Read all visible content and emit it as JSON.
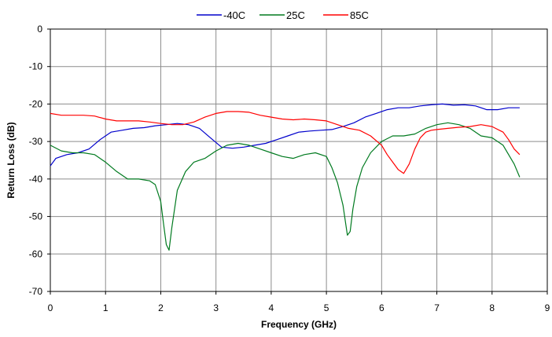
{
  "chart_data": {
    "type": "line",
    "xlabel": "Frequency (GHz)",
    "ylabel": "Return Loss (dB)",
    "xlim": [
      0,
      9
    ],
    "ylim": [
      -70,
      0
    ],
    "xticks": [
      0,
      1,
      2,
      3,
      4,
      5,
      6,
      7,
      8,
      9
    ],
    "yticks": [
      0,
      -10,
      -20,
      -30,
      -40,
      -50,
      -60,
      -70
    ],
    "grid": true,
    "legend_position": "top",
    "series": [
      {
        "name": "-40C",
        "color": "#0000cc",
        "x": [
          0,
          0.1,
          0.3,
          0.5,
          0.7,
          0.9,
          1.1,
          1.3,
          1.5,
          1.7,
          1.9,
          2.1,
          2.3,
          2.5,
          2.7,
          2.9,
          3.1,
          3.3,
          3.5,
          3.7,
          3.9,
          4.1,
          4.3,
          4.5,
          4.7,
          4.9,
          5.1,
          5.3,
          5.5,
          5.7,
          5.9,
          6.1,
          6.3,
          6.5,
          6.7,
          6.9,
          7.1,
          7.3,
          7.5,
          7.7,
          7.9,
          8.1,
          8.3,
          8.5
        ],
        "y": [
          -36.5,
          -34.5,
          -33.5,
          -33.0,
          -32.0,
          -29.5,
          -27.5,
          -27.0,
          -26.5,
          -26.3,
          -25.8,
          -25.5,
          -25.2,
          -25.5,
          -26.5,
          -29.0,
          -31.5,
          -31.8,
          -31.5,
          -31.0,
          -30.5,
          -29.5,
          -28.5,
          -27.5,
          -27.2,
          -27.0,
          -26.8,
          -26.0,
          -25.0,
          -23.5,
          -22.5,
          -21.5,
          -21.0,
          -21.0,
          -20.5,
          -20.2,
          -20.0,
          -20.3,
          -20.2,
          -20.5,
          -21.5,
          -21.5,
          -21.0,
          -21.0
        ]
      },
      {
        "name": "25C",
        "color": "#007a1f",
        "x": [
          0,
          0.2,
          0.4,
          0.6,
          0.8,
          1.0,
          1.2,
          1.4,
          1.6,
          1.8,
          1.9,
          2.0,
          2.05,
          2.1,
          2.15,
          2.2,
          2.3,
          2.45,
          2.6,
          2.8,
          3.0,
          3.2,
          3.4,
          3.6,
          3.8,
          4.0,
          4.2,
          4.4,
          4.6,
          4.8,
          5.0,
          5.1,
          5.2,
          5.3,
          5.38,
          5.43,
          5.48,
          5.55,
          5.65,
          5.8,
          6.0,
          6.2,
          6.4,
          6.6,
          6.8,
          7.0,
          7.2,
          7.4,
          7.6,
          7.8,
          8.0,
          8.2,
          8.4,
          8.5
        ],
        "y": [
          -31.0,
          -32.5,
          -33.0,
          -33.0,
          -33.5,
          -35.5,
          -38.0,
          -40.0,
          -40.0,
          -40.5,
          -41.5,
          -46.0,
          -52.0,
          -57.5,
          -59.0,
          -53.0,
          -43.0,
          -38.0,
          -35.5,
          -34.5,
          -32.5,
          -31.0,
          -30.5,
          -31.0,
          -32.0,
          -33.0,
          -34.0,
          -34.5,
          -33.5,
          -33.0,
          -34.0,
          -37.0,
          -41.0,
          -47.0,
          -55.0,
          -54.0,
          -48.0,
          -42.0,
          -37.0,
          -33.0,
          -30.0,
          -28.5,
          -28.5,
          -28.0,
          -26.5,
          -25.5,
          -25.0,
          -25.5,
          -26.5,
          -28.5,
          -29.0,
          -31.0,
          -36.0,
          -39.5
        ]
      },
      {
        "name": "85C",
        "color": "#ff0000",
        "x": [
          0,
          0.2,
          0.4,
          0.6,
          0.8,
          1.0,
          1.2,
          1.4,
          1.6,
          1.8,
          2.0,
          2.2,
          2.4,
          2.6,
          2.8,
          3.0,
          3.2,
          3.4,
          3.6,
          3.8,
          4.0,
          4.2,
          4.4,
          4.6,
          4.8,
          5.0,
          5.2,
          5.4,
          5.6,
          5.8,
          6.0,
          6.1,
          6.2,
          6.3,
          6.4,
          6.5,
          6.6,
          6.7,
          6.8,
          6.9,
          7.0,
          7.2,
          7.4,
          7.6,
          7.8,
          8.0,
          8.2,
          8.3,
          8.4,
          8.5
        ],
        "y": [
          -22.5,
          -23.0,
          -23.0,
          -23.0,
          -23.2,
          -24.0,
          -24.5,
          -24.5,
          -24.5,
          -24.8,
          -25.2,
          -25.5,
          -25.5,
          -24.8,
          -23.5,
          -22.5,
          -22.0,
          -22.0,
          -22.2,
          -23.0,
          -23.5,
          -24.0,
          -24.2,
          -24.0,
          -24.2,
          -24.5,
          -25.5,
          -26.5,
          -27.0,
          -28.5,
          -31.0,
          -33.5,
          -35.5,
          -37.5,
          -38.5,
          -36.0,
          -32.0,
          -29.0,
          -27.5,
          -27.0,
          -26.8,
          -26.5,
          -26.2,
          -26.0,
          -25.5,
          -26.0,
          -27.5,
          -29.5,
          -32.0,
          -33.5
        ]
      }
    ]
  }
}
